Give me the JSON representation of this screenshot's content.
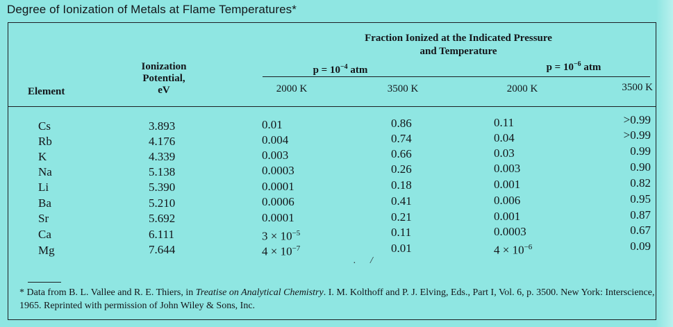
{
  "title": "Degree of Ionization of Metals at Flame Temperatures*",
  "headers": {
    "element": "Element",
    "ionization_line1": "Ionization",
    "ionization_line2": "Potential,",
    "ionization_line3": "eV",
    "fraction_line1": "Fraction Ionized at the Indicated Pressure",
    "fraction_line2": "and Temperature",
    "p1_prefix": "p = 10",
    "p1_exp": "−4",
    "p1_suffix": " atm",
    "p2_prefix": "p = 10",
    "p2_exp": "−6",
    "p2_suffix": " atm",
    "temps": [
      "2000 K",
      "3500 K",
      "2000 K",
      "3500 K"
    ]
  },
  "rows": [
    {
      "element": "Cs",
      "potential": "3.893",
      "p4_2000": "0.01",
      "p4_3500": "0.86",
      "p6_2000": "0.11",
      "p6_3500": ">0.99"
    },
    {
      "element": "Rb",
      "potential": "4.176",
      "p4_2000": "0.004",
      "p4_3500": "0.74",
      "p6_2000": "0.04",
      "p6_3500": ">0.99"
    },
    {
      "element": "K",
      "potential": "4.339",
      "p4_2000": "0.003",
      "p4_3500": "0.66",
      "p6_2000": "0.03",
      "p6_3500": "0.99"
    },
    {
      "element": "Na",
      "potential": "5.138",
      "p4_2000": "0.0003",
      "p4_3500": "0.26",
      "p6_2000": "0.003",
      "p6_3500": "0.90"
    },
    {
      "element": "Li",
      "potential": "5.390",
      "p4_2000": "0.0001",
      "p4_3500": "0.18",
      "p6_2000": "0.001",
      "p6_3500": "0.82"
    },
    {
      "element": "Ba",
      "potential": "5.210",
      "p4_2000": "0.0006",
      "p4_3500": "0.41",
      "p6_2000": "0.006",
      "p6_3500": "0.95"
    },
    {
      "element": "Sr",
      "potential": "5.692",
      "p4_2000": "0.0001",
      "p4_3500": "0.21",
      "p6_2000": "0.001",
      "p6_3500": "0.87"
    },
    {
      "element": "Ca",
      "potential": "6.111",
      "p4_2000": "3 × 10",
      "p4_2000_exp": "−5",
      "p4_3500": "0.11",
      "p6_2000": "0.0003",
      "p6_3500": "0.67"
    },
    {
      "element": "Mg",
      "potential": "7.644",
      "p4_2000": "4 × 10",
      "p4_2000_exp": "−7",
      "p4_3500": "0.01",
      "p6_2000": "4 × 10",
      "p6_2000_exp": "−6",
      "p6_3500": "0.09"
    }
  ],
  "footnote": {
    "prefix": "* Data from B. L. Vallee and R. E. Thiers, in ",
    "book": "Treatise on Analytical Chemistry",
    "suffix": ". I. M. Kolthoff and P. J. Elving, Eds., Part I, Vol. 6, p. 3500. New York: Interscience, 1965. Reprinted with permission of John Wiley & Sons, Inc."
  },
  "colors": {
    "background": "#8fe6e2",
    "ink": "#14161a"
  }
}
